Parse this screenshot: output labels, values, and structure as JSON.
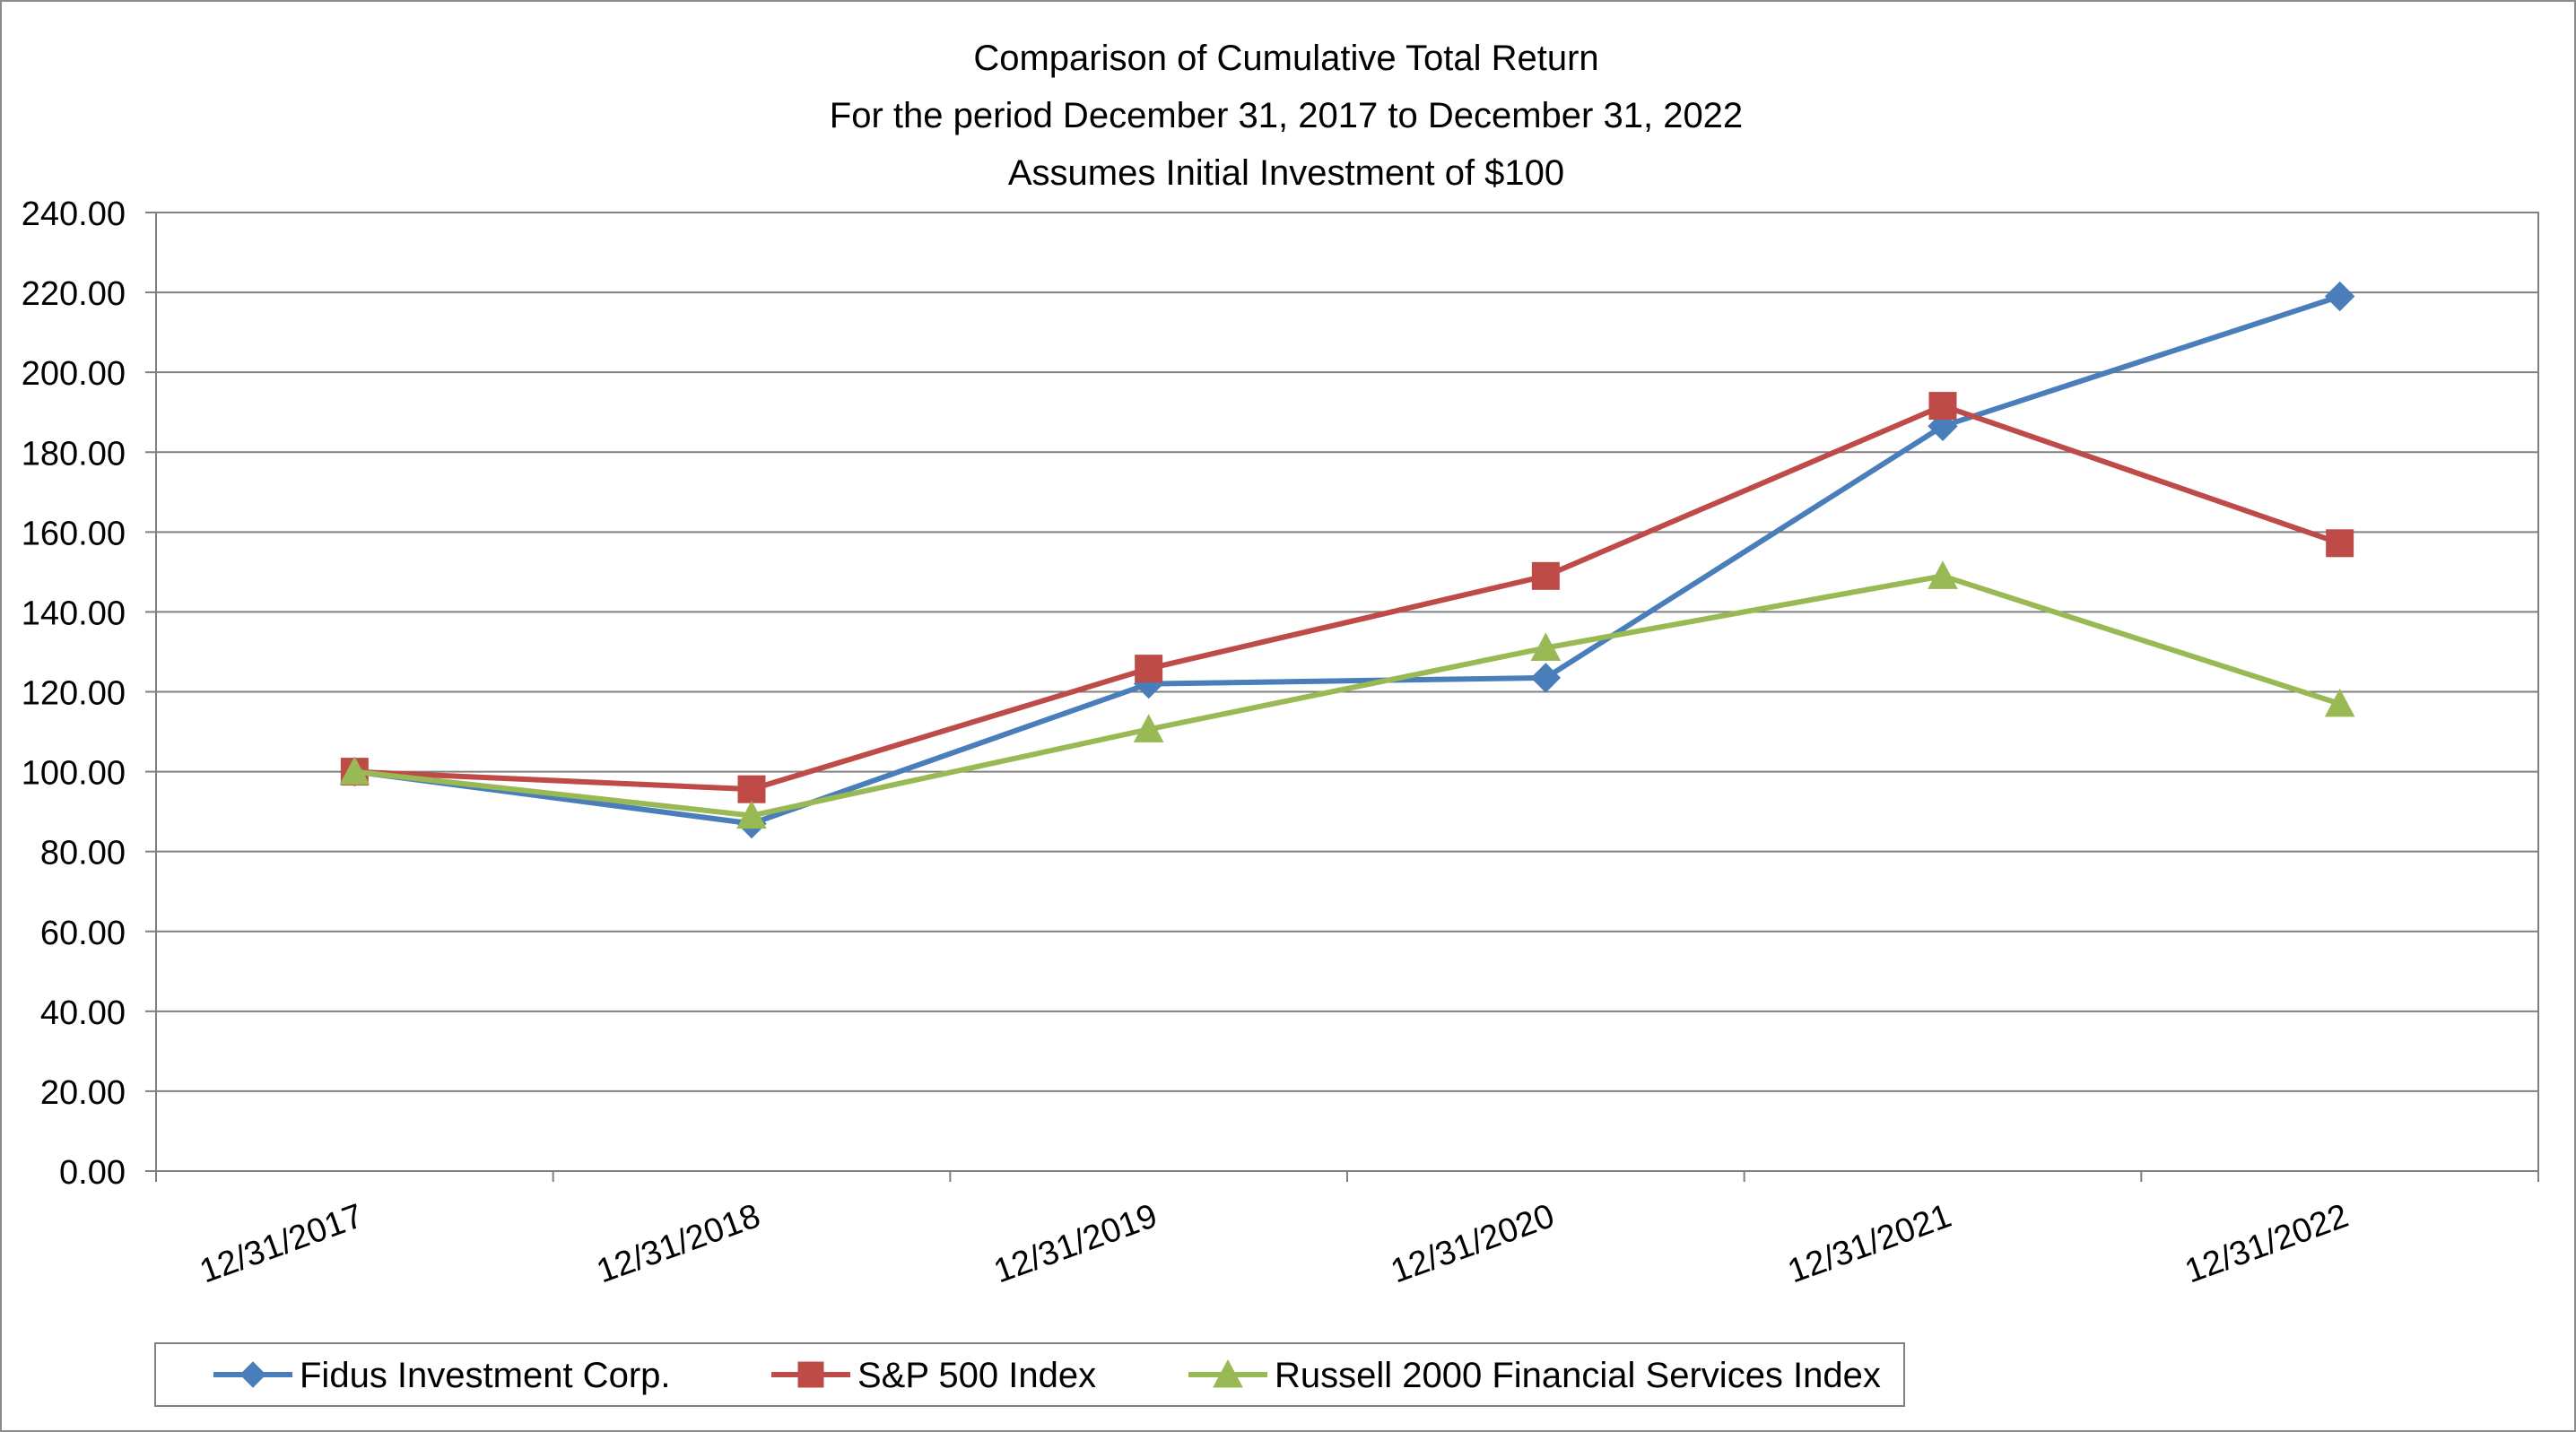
{
  "chart_data": {
    "type": "line",
    "title": [
      "Comparison of Cumulative Total Return",
      "For the period December 31, 2017 to December 31, 2022",
      "Assumes Initial Investment of $100"
    ],
    "xlabel": "",
    "ylabel": "",
    "ylim": [
      0,
      240
    ],
    "yticks": [
      "0.00",
      "20.00",
      "40.00",
      "60.00",
      "80.00",
      "100.00",
      "120.00",
      "140.00",
      "160.00",
      "180.00",
      "200.00",
      "220.00",
      "240.00"
    ],
    "categories": [
      "12/31/2017",
      "12/31/2018",
      "12/31/2019",
      "12/31/2020",
      "12/31/2021",
      "12/31/2022"
    ],
    "grid": "horizontal",
    "legend_position": "bottom",
    "series": [
      {
        "name": "Fidus Investment Corp.",
        "color": "#4a7ebb",
        "marker": "diamond",
        "values": [
          100.0,
          87.0,
          122.0,
          123.5,
          186.5,
          219.0
        ]
      },
      {
        "name": "S&P 500 Index",
        "color": "#be4b48",
        "marker": "square",
        "values": [
          100.0,
          95.6,
          125.8,
          149.0,
          191.6,
          157.2
        ]
      },
      {
        "name": "Russell 2000 Financial Services Index",
        "color": "#98b954",
        "marker": "triangle",
        "values": [
          100.0,
          89.0,
          110.6,
          131.0,
          149.0,
          117.0
        ]
      }
    ]
  }
}
